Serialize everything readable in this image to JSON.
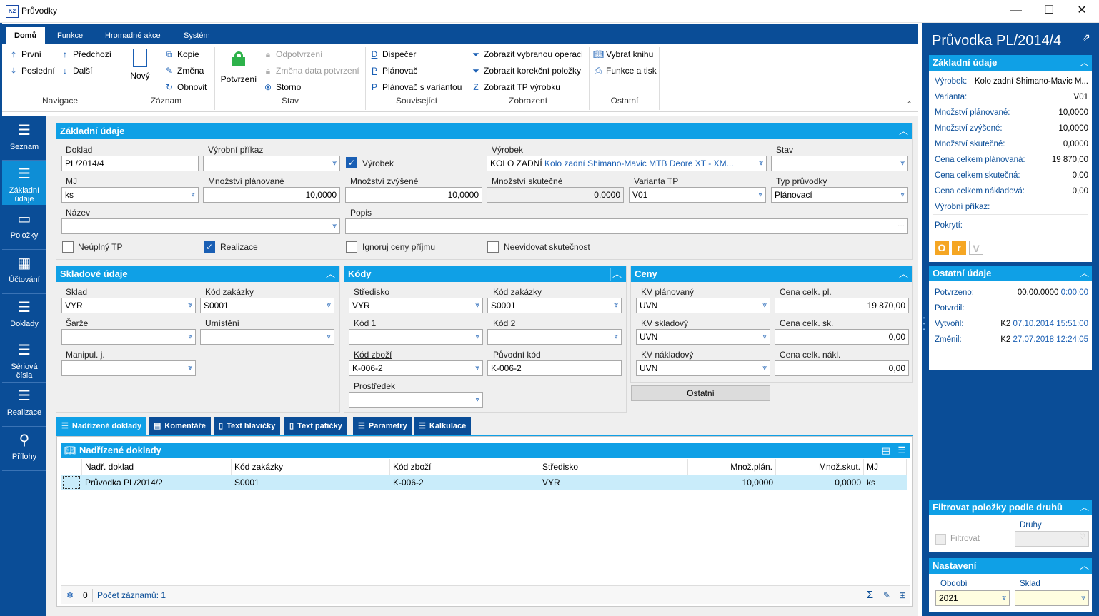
{
  "window": {
    "title": "Průvodky",
    "app_icon": "K2",
    "controls": [
      "—",
      "☐",
      "✕"
    ]
  },
  "ribbon": {
    "tabs": [
      "Domů",
      "Funkce",
      "Hromadné akce",
      "Systém"
    ],
    "navigace": {
      "prvni": "První",
      "posledni": "Poslední",
      "predchozi": "Předchozí",
      "dalsi": "Další",
      "group": "Navigace"
    },
    "zaznam": {
      "novy": "Nový",
      "kopie": "Kopie",
      "zmena": "Změna",
      "obnovit": "Obnovit",
      "group": "Záznam"
    },
    "stav": {
      "potvrzeni": "Potvrzení",
      "odpotvrzeni": "Odpotvrzení",
      "zmena_data": "Změna data potvrzení",
      "storno": "Storno",
      "group": "Stav"
    },
    "souvisejici": {
      "dispecer": "Dispečer",
      "planovac": "Plánovač",
      "planovac_var": "Plánovač s variantou",
      "group": "Související"
    },
    "zobrazeni": {
      "operace": "Zobrazit vybranou operaci",
      "korekce": "Zobrazit korekční položky",
      "tp": "Zobrazit TP výrobku",
      "group": "Zobrazení"
    },
    "ostatni": {
      "kniha": "Vybrat knihu",
      "tisk": "Funkce a tisk",
      "group": "Ostatní"
    }
  },
  "nav": [
    {
      "label": "Seznam",
      "icon": "list-icon"
    },
    {
      "label": "Základní údaje",
      "icon": "list-icon"
    },
    {
      "label": "Položky",
      "icon": "box-icon"
    },
    {
      "label": "Účtování",
      "icon": "calculator-icon"
    },
    {
      "label": "Doklady",
      "icon": "list-icon"
    },
    {
      "label": "Sériová čísla",
      "icon": "list-icon"
    },
    {
      "label": "Realizace",
      "icon": "list-icon"
    },
    {
      "label": "Přílohy",
      "icon": "paperclip-icon"
    }
  ],
  "zakladni": {
    "title": "Základní údaje",
    "doklad_l": "Doklad",
    "doklad_v": "PL/2014/4",
    "vp_l": "Výrobní příkaz",
    "vp_v": "",
    "vyrobek_chk": "Výrobek",
    "vyrobek_l": "Výrobek",
    "vyrobek_code": "KOLO ZADNÍ",
    "vyrobek_name": "Kolo zadní Shimano-Mavic MTB Deore XT - XM...",
    "stav_l": "Stav",
    "stav_v": "",
    "mj_l": "MJ",
    "mj_v": "ks",
    "mpl_l": "Množství plánované",
    "mpl_v": "10,0000",
    "mzv_l": "Množství zvýšené",
    "mzv_v": "10,0000",
    "msk_l": "Množství skutečné",
    "msk_v": "0,0000",
    "var_l": "Varianta TP",
    "var_v": "V01",
    "typ_l": "Typ průvodky",
    "typ_v": "Plánovací",
    "nazev_l": "Název",
    "nazev_v": "",
    "popis_l": "Popis",
    "popis_v": "",
    "neuplny": "Neúplný TP",
    "realizace": "Realizace",
    "ignoruj": "Ignoruj ceny příjmu",
    "neevidovat": "Neevidovat skutečnost"
  },
  "sklad": {
    "title": "Skladové údaje",
    "sklad_l": "Sklad",
    "sklad_v": "VYR",
    "kz_l": "Kód zakázky",
    "kz_v": "S0001",
    "sarze_l": "Šarže",
    "umisteni_l": "Umístění",
    "manipul_l": "Manipul. j."
  },
  "kody": {
    "title": "Kódy",
    "str_l": "Středisko",
    "str_v": "VYR",
    "kz_l": "Kód zakázky",
    "kz_v": "S0001",
    "k1_l": "Kód 1",
    "k2_l": "Kód 2",
    "kzb_l": "Kód zboží",
    "kzb_v": "K-006-2",
    "puv_l": "Původní kód",
    "puv_v": "K-006-2",
    "prostr_l": "Prostředek"
  },
  "ceny": {
    "title": "Ceny",
    "kvp_l": "KV plánovaný",
    "kvp_v": "UVN",
    "ccp_l": "Cena celk. pl.",
    "ccp_v": "19 870,00",
    "kvs_l": "KV skladový",
    "kvs_v": "UVN",
    "ccs_l": "Cena celk. sk.",
    "ccs_v": "0,00",
    "kvn_l": "KV nákladový",
    "kvn_v": "UVN",
    "ccn_l": "Cena celk. nákl.",
    "ccn_v": "0,00",
    "ostatni": "Ostatní"
  },
  "tabs": [
    "Nadřízené doklady",
    "Komentáře",
    "Text hlavičky",
    "Text patičky",
    "Parametry",
    "Kalkulace"
  ],
  "grid": {
    "title": "Nadřízené doklady",
    "headers": [
      "Nadř. doklad",
      "Kód zakázky",
      "Kód zboží",
      "Středisko",
      "Množ.plán.",
      "Množ.skut.",
      "MJ"
    ],
    "row": [
      "Průvodka PL/2014/2",
      "S0001",
      "K-006-2",
      "VYR",
      "10,0000",
      "0,0000",
      "ks"
    ],
    "footer_count_num": "0",
    "footer_count": "Počet záznamů: 1"
  },
  "right": {
    "title": "Průvodka PL/2014/4",
    "zakladni_title": "Základní údaje",
    "vyrobek_l": "Výrobek:",
    "vyrobek_v": "Kolo zadní Shimano-Mavic M...",
    "varianta_l": "Varianta:",
    "varianta_v": "V01",
    "mpl_l": "Množství plánované:",
    "mpl_v": "10,0000",
    "mzv_l": "Množství zvýšené:",
    "mzv_v": "10,0000",
    "msk_l": "Množství skutečné:",
    "msk_v": "0,0000",
    "ccp_l": "Cena celkem plánovaná:",
    "ccp_v": "19 870,00",
    "ccs_l": "Cena celkem skutečná:",
    "ccs_v": "0,00",
    "ccn_l": "Cena celkem nákladová:",
    "ccn_v": "0,00",
    "vp_l": "Výrobní příkaz:",
    "pokryti_l": "Pokrytí:",
    "badges": [
      "O",
      "r",
      "V"
    ],
    "ostatni_title": "Ostatní údaje",
    "potvrzeno_l": "Potvrzeno:",
    "potvrzeno_v": "00.00.0000",
    "potvrzeno_t": "0:00:00",
    "potvrdil_l": "Potvrdil:",
    "vytvoril_l": "Vytvořil:",
    "vytvoril_u": "K2",
    "vytvoril_v": "07.10.2014 15:51:00",
    "zmenil_l": "Změnil:",
    "zmenil_u": "K2",
    "zmenil_v": "27.07.2018 12:24:05",
    "filtr_title": "Filtrovat položky podle druhů",
    "druhy_l": "Druhy",
    "filtrovat_l": "Filtrovat",
    "nastaveni_title": "Nastavení",
    "obdobi_l": "Období",
    "obdobi_v": "2021",
    "sklad_l": "Sklad",
    "sklad_v": ""
  },
  "colors": {
    "dark_blue": "#0a4d97",
    "light_blue": "#0fa0e6",
    "badge_orange": "#f5a623"
  }
}
